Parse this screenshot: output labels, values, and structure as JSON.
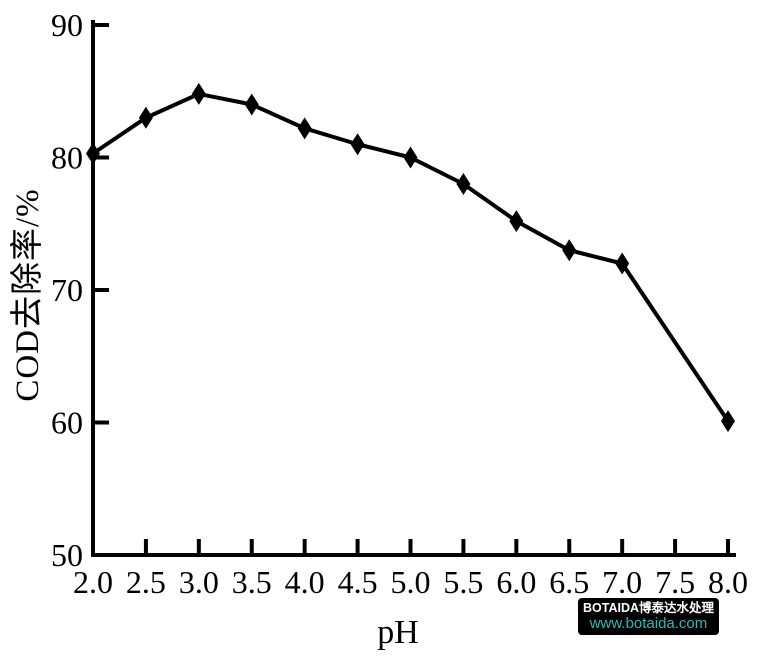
{
  "chart_data": {
    "type": "line",
    "title": "",
    "xlabel": "pH",
    "ylabel": "COD去除率/%",
    "xlim": [
      2.0,
      8.0
    ],
    "ylim": [
      50,
      90
    ],
    "x_ticks": [
      "2.0",
      "2.5",
      "3.0",
      "3.5",
      "4.0",
      "4.5",
      "5.0",
      "5.5",
      "6.0",
      "6.5",
      "7.0",
      "7.5",
      "8.0"
    ],
    "y_ticks": [
      "50",
      "60",
      "70",
      "80",
      "90"
    ],
    "grid": false,
    "legend": "none",
    "axis_color": "#000000",
    "series": [
      {
        "name": "COD removal rate vs pH",
        "marker": "diamond",
        "color": "#000000",
        "x": [
          2.0,
          2.5,
          3.0,
          3.5,
          4.0,
          4.5,
          5.0,
          5.5,
          6.0,
          6.5,
          7.0,
          8.0
        ],
        "y": [
          80.3,
          83.0,
          84.8,
          84.0,
          82.2,
          81.0,
          80.0,
          78.0,
          75.2,
          73.0,
          72.0,
          60.1
        ]
      }
    ]
  },
  "watermark": {
    "line1": "BOTAIDA博泰达水处理",
    "line2": "www.botaida.com",
    "background": "#000000",
    "line1_color": "#ffffff",
    "line2_color": "#2eb8b2"
  }
}
